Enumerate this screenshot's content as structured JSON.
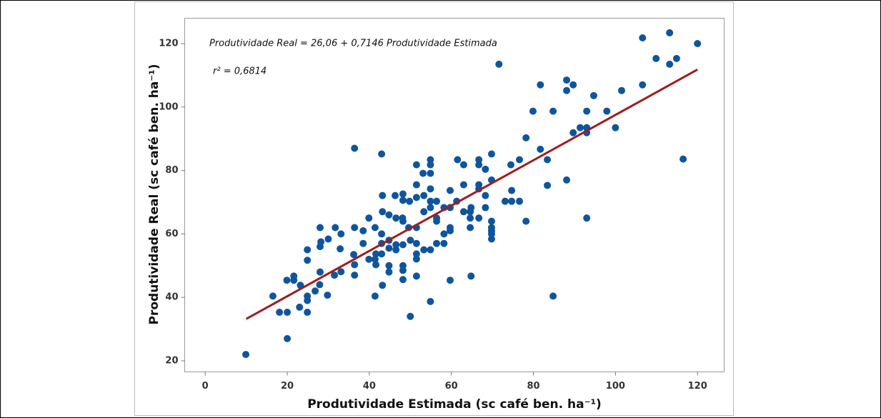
{
  "chart_data": {
    "type": "scatter",
    "annotations": [
      "Produtividade Real = 26,06 + 0,7146 Produtividade Estimada",
      "r² = 0,6814"
    ],
    "x_label": "Produtividade Estimada (sc café ben. ha⁻¹)",
    "y_label": "Produtividade Real (sc café ben. ha⁻¹)",
    "color": "#0f559e",
    "x": [
      9.9,
      16.5,
      18.1,
      20,
      20,
      19.9,
      21.6,
      21.6,
      23.2,
      23,
      24.9,
      24.9,
      24.9,
      24.9,
      24.9,
      26.8,
      27.9,
      28,
      28,
      28.2,
      28,
      29.8,
      30,
      31.7,
      31.5,
      32.9,
      33.1,
      33.1,
      36.4,
      36.2,
      36.4,
      36.4,
      36.4,
      38.5,
      38.5,
      39.9,
      39.9,
      41.4,
      41.6,
      41.6,
      41.4,
      41.4,
      43,
      43.2,
      43.2,
      43,
      43,
      43,
      43.2,
      44.8,
      44.8,
      44.8,
      44.8,
      44.8,
      46.3,
      46.5,
      46.5,
      46.5,
      48.1,
      48.2,
      48.2,
      48.2,
      48.2,
      48.2,
      48.2,
      48.2,
      50,
      50,
      49.8,
      49.6,
      51.5,
      51.5,
      51.5,
      51.5,
      51.5,
      51.5,
      51.5,
      51.5,
      53.3,
      53.1,
      53.3,
      53.3,
      54.9,
      54.9,
      54.9,
      54.9,
      54.9,
      54.9,
      54.9,
      54.9,
      56.4,
      56.4,
      56.4,
      56.4,
      58.2,
      58.2,
      58.2,
      59.7,
      59.7,
      59.7,
      59.7,
      59.7,
      61.5,
      61.3,
      63,
      63,
      63,
      64.6,
      64.6,
      64.6,
      64.8,
      64.8,
      66.7,
      66.7,
      66.7,
      66.7,
      66.7,
      68.3,
      68.3,
      68.3,
      69.8,
      69.8,
      69.8,
      69.8,
      69.8,
      69.8,
      69.8,
      71.6,
      73.1,
      74.5,
      74.7,
      74.7,
      76.6,
      76.6,
      78.2,
      78.2,
      79.9,
      81.7,
      81.7,
      83.4,
      83.4,
      84.8,
      84.8,
      88.1,
      88.1,
      88.1,
      89.7,
      89.7,
      91.4,
      93,
      93,
      93,
      93,
      94.7,
      97.9,
      100,
      101.5,
      106.6,
      106.6,
      109.9,
      113.2,
      113.2,
      114.9,
      116.5,
      120
    ],
    "values": [
      22,
      40.4,
      35.3,
      35.3,
      27,
      45.4,
      46.7,
      45.4,
      43.8,
      36.9,
      35.3,
      39,
      40.4,
      55,
      51.7,
      42,
      44,
      48,
      56,
      57.5,
      62,
      40.7,
      58.4,
      62,
      47,
      55.3,
      48.1,
      60,
      87,
      53.5,
      47,
      50.3,
      62,
      57,
      61,
      65,
      52,
      52,
      53.7,
      50.3,
      62,
      40.4,
      85.2,
      72.1,
      67,
      60,
      57,
      53.7,
      43.8,
      58,
      66,
      55.5,
      50,
      48,
      72.1,
      65,
      56.6,
      55,
      65,
      72.6,
      70.6,
      64,
      56.6,
      50,
      48.5,
      45.6,
      58,
      34,
      70.3,
      62,
      81.8,
      75.5,
      71.5,
      62,
      57,
      53.7,
      52.1,
      46.7,
      67,
      79.1,
      72.1,
      55,
      83.4,
      81.8,
      79.1,
      74.2,
      70.3,
      68.3,
      55,
      38.7,
      70.3,
      65,
      64,
      57,
      68.3,
      60,
      57,
      73.7,
      68.3,
      62,
      61,
      45.4,
      83.4,
      70.3,
      75.5,
      67,
      81.8,
      67,
      65,
      62,
      46.7,
      68.3,
      83.4,
      81.8,
      75.5,
      74.2,
      65,
      80.4,
      72.1,
      68.3,
      85.2,
      77,
      64,
      62,
      61,
      60,
      58.4,
      113.5,
      70.3,
      81.8,
      73.7,
      70.3,
      83.4,
      70.3,
      64,
      90.3,
      98.7,
      107,
      86.7,
      83.4,
      75.3,
      98.7,
      40.4,
      77,
      108.5,
      105.2,
      107,
      91.9,
      93.5,
      93.5,
      91.9,
      98.7,
      65,
      103.6,
      98.7,
      93.5,
      105.2,
      107,
      121.8,
      115.3,
      123.4,
      113.5,
      115.3,
      83.6,
      120
    ],
    "fit": {
      "x": [
        10,
        120
      ],
      "intercept": 26.06,
      "slope": 0.7146,
      "color": "#a01c1c"
    },
    "xlim": [
      -5,
      126.5
    ],
    "ylim": [
      16.5,
      128
    ],
    "xticks": [
      0,
      20,
      40,
      60,
      80,
      100,
      120
    ],
    "yticks": [
      20,
      40,
      60,
      80,
      100,
      120
    ]
  }
}
